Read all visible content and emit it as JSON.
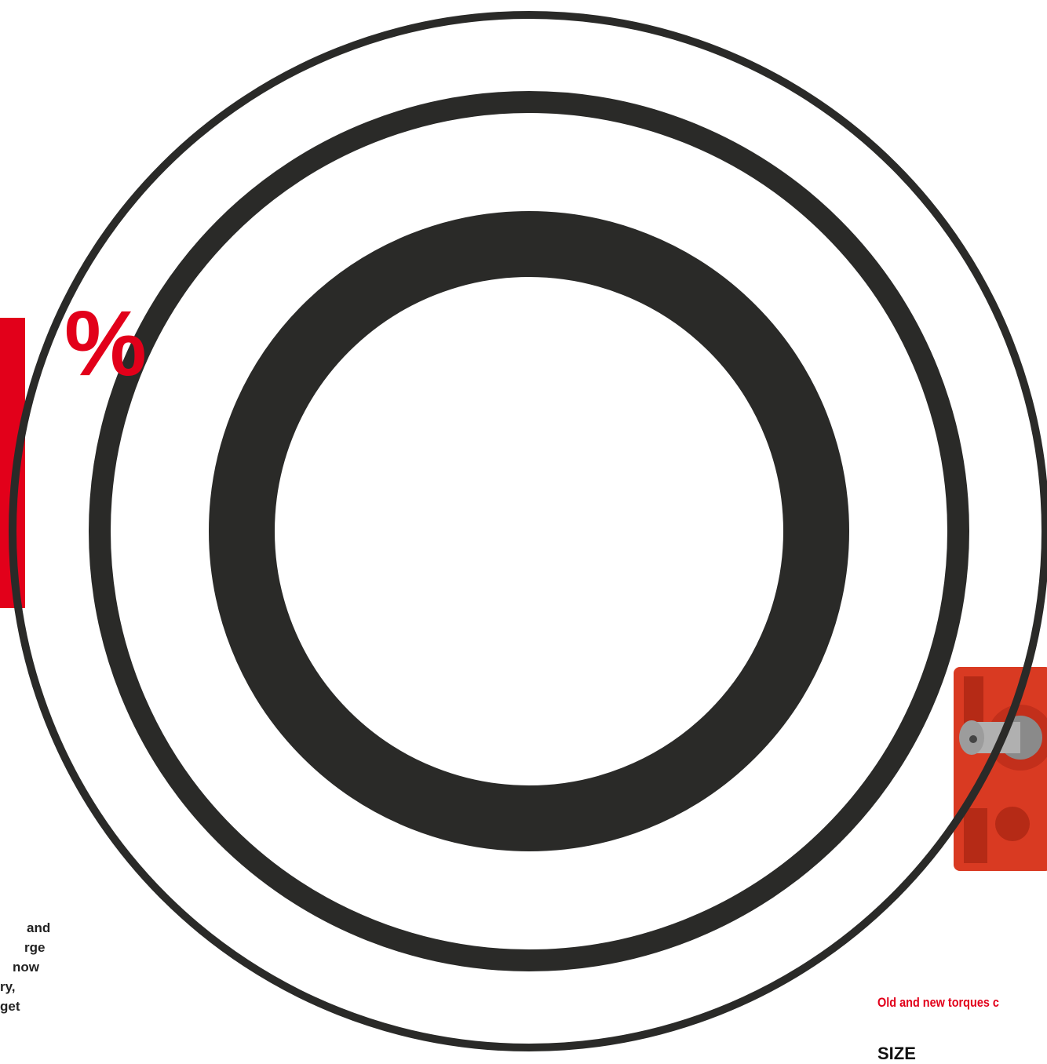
{
  "big_symbol": "%",
  "body_fragment": [
    "and",
    "rge",
    "now",
    "ry,",
    "get"
  ],
  "caption": "Old and new torques c",
  "table_header": "SIZE"
}
